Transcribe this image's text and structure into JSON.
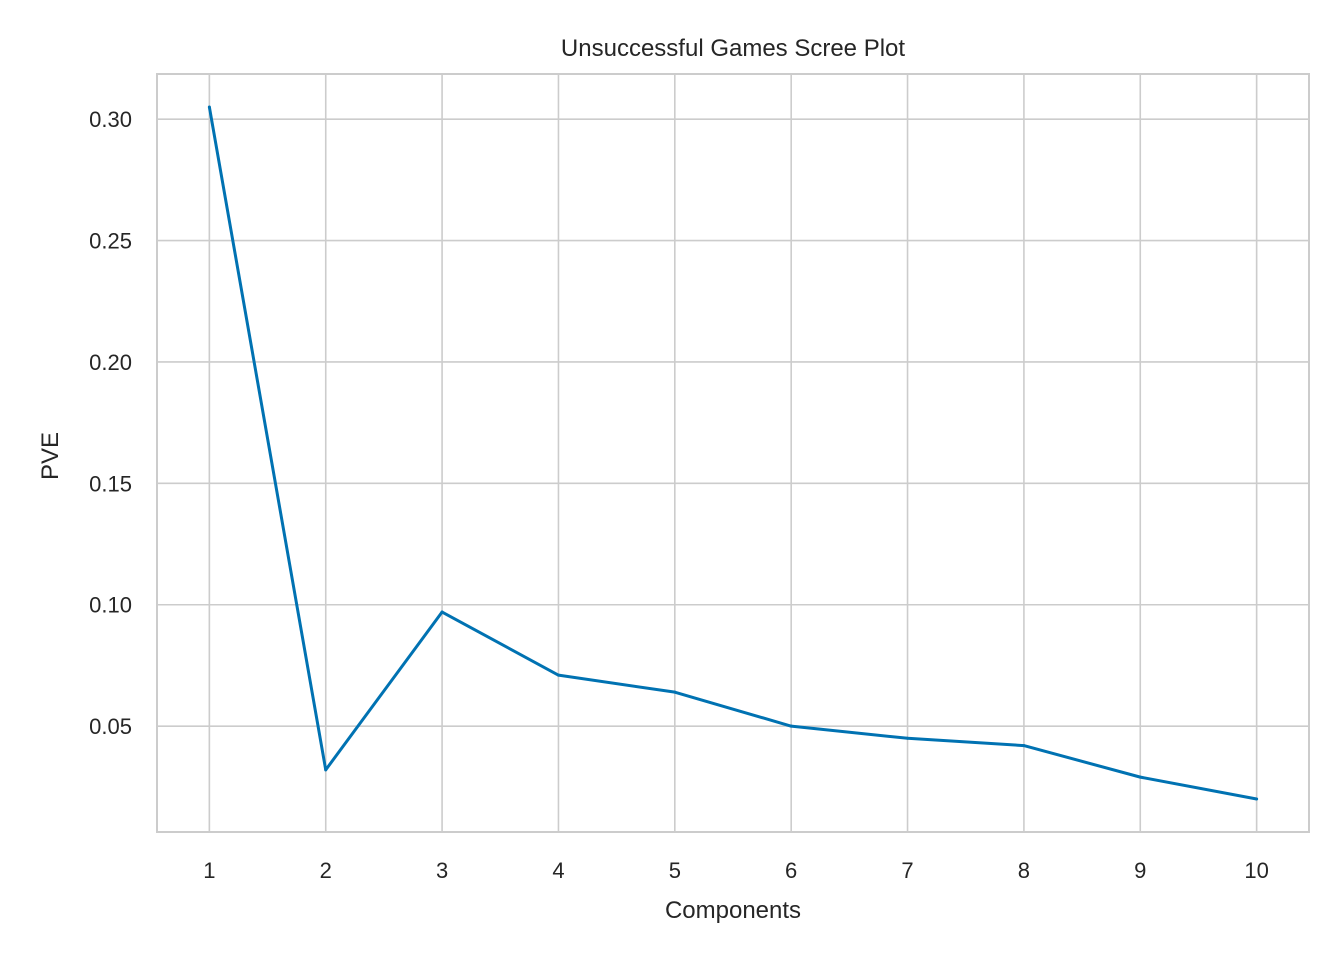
{
  "chart_data": {
    "type": "line",
    "title": "Unsuccessful Games Scree Plot",
    "xlabel": "Components",
    "ylabel": "PVE",
    "x": [
      1,
      2,
      3,
      4,
      5,
      6,
      7,
      8,
      9,
      10
    ],
    "series": [
      {
        "values": [
          0.305,
          0.032,
          0.097,
          0.071,
          0.064,
          0.05,
          0.045,
          0.042,
          0.029,
          0.02
        ],
        "color": "#0072b2"
      }
    ],
    "xticks": [
      "1",
      "2",
      "3",
      "4",
      "5",
      "6",
      "7",
      "8",
      "9",
      "10"
    ],
    "yticks": [
      "0.05",
      "0.10",
      "0.15",
      "0.20",
      "0.25",
      "0.30"
    ],
    "ytick_values": [
      0.05,
      0.1,
      0.15,
      0.2,
      0.25,
      0.3
    ],
    "xlim": [
      0.55,
      10.45
    ],
    "ylim": [
      0.0064,
      0.3186
    ],
    "grid": true,
    "legend": "none"
  }
}
